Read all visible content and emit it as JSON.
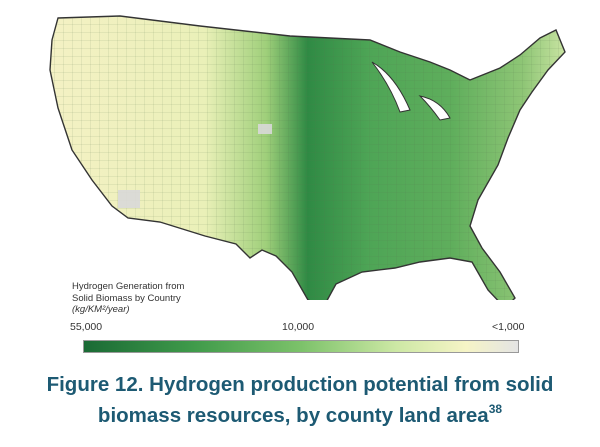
{
  "legend": {
    "title_line1": "Hydrogen Generation from",
    "title_line2": "Solid Biomass by Country",
    "units": "(kg/KM²/year)",
    "tick_labels": [
      "55,000",
      "10,000",
      "<1,000"
    ],
    "colors": [
      "#1a6a35",
      "#7cc26a",
      "#f6f4c6",
      "#e4e4e4"
    ]
  },
  "caption": {
    "text": "Figure 12. Hydrogen production potential from solid biomass resources, by county land area",
    "line1": "Figure 12. Hydrogen production potential from solid",
    "line2": "biomass resources, by county land area",
    "footnote": "38",
    "color": "#1d5a73"
  }
}
